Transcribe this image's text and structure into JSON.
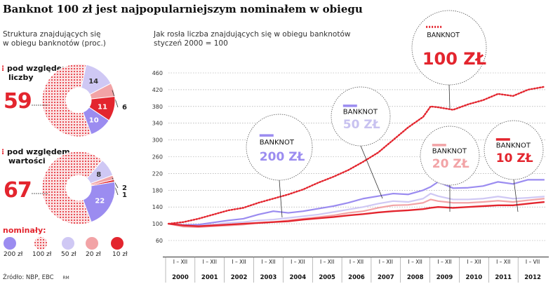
{
  "title": "Banknot 100 zł jest najpopularniejszym nominałem w obiegu",
  "left_subtitle": "Struktura znajdujących się\nw obiegu banknotów (proc.)",
  "right_subtitle": "Jak rosła liczba znajdujących się w obiegu banknotów\nstyczeń 2000 = 100",
  "source": "Źródło: NBP, EBC",
  "credit": "RM",
  "colors": {
    "n200": "#9b8cf0",
    "n100": "#e3252e",
    "n50": "#cfc8f4",
    "n20": "#f2a3a6",
    "n10": "#e3252e",
    "grid": "#999999"
  },
  "legend": {
    "title": "nominały:",
    "items": [
      {
        "label": "200 zł",
        "color": "#9b8cf0",
        "icon": "solid-dot"
      },
      {
        "label": "100 zł",
        "color": "#e3252e",
        "icon": "dotted-circle"
      },
      {
        "label": "50 zł",
        "color": "#cfc8f4",
        "icon": "solid-dot"
      },
      {
        "label": "20 zł",
        "color": "#f2a3a6",
        "icon": "solid-dot"
      },
      {
        "label": "10 zł",
        "color": "#e3252e",
        "icon": "solid-dot"
      }
    ]
  },
  "callouts": [
    {
      "word": "BANKNOT",
      "value": "100 ZŁ",
      "series": "100 zł"
    },
    {
      "word": "BANKNOT",
      "value": "50 ZŁ",
      "series": "50 zł"
    },
    {
      "word": "BANKNOT",
      "value": "200 ZŁ",
      "series": "200 zł"
    },
    {
      "word": "BANKNOT",
      "value": "20 ZŁ",
      "series": "20 zł"
    },
    {
      "word": "BANKNOT",
      "value": "10 ZŁ",
      "series": "10 zł"
    }
  ],
  "chart_data": [
    {
      "type": "pie",
      "subtype": "donut",
      "label": "pod względem\nliczby",
      "highlight": "59",
      "slices": [
        {
          "name": "100 zł",
          "value": 59,
          "label": ""
        },
        {
          "name": "50 zł",
          "value": 14,
          "label": "14"
        },
        {
          "name": "20 zł",
          "value": 6,
          "label": "6"
        },
        {
          "name": "10 zł",
          "value": 11,
          "label": "11"
        },
        {
          "name": "200 zł",
          "value": 10,
          "label": "10"
        }
      ]
    },
    {
      "type": "pie",
      "subtype": "donut",
      "label": "pod względem\nwartości",
      "highlight": "67",
      "slices": [
        {
          "name": "100 zł",
          "value": 67,
          "label": ""
        },
        {
          "name": "50 zł",
          "value": 8,
          "label": "8"
        },
        {
          "name": "20 zł",
          "value": 2,
          "label": "2"
        },
        {
          "name": "10 zł",
          "value": 1,
          "label": "1"
        },
        {
          "name": "200 zł",
          "value": 22,
          "label": "22"
        }
      ]
    },
    {
      "type": "line",
      "ylim": [
        60,
        460
      ],
      "yticks": [
        60,
        100,
        140,
        180,
        220,
        260,
        300,
        340,
        380,
        420,
        460
      ],
      "xlim": [
        2000,
        2012.6
      ],
      "x_period_labels": [
        "I – XII",
        "I – XII",
        "I – XII",
        "I – XII",
        "I – XII",
        "I – XII",
        "I – XII",
        "I – XII",
        "I – XII",
        "I – XII",
        "I – XII",
        "I – XII",
        "I – VII"
      ],
      "x_year_labels": [
        "2000",
        "2001",
        "2002",
        "2003",
        "2004",
        "2005",
        "2006",
        "2007",
        "2008",
        "2009",
        "2010",
        "2011",
        "2012"
      ],
      "x": [
        2000,
        2000.5,
        2001,
        2001.5,
        2002,
        2002.5,
        2003,
        2003.5,
        2004,
        2004.5,
        2005,
        2005.5,
        2006,
        2006.5,
        2007,
        2007.5,
        2008,
        2008.5,
        2008.75,
        2009,
        2009.5,
        2010,
        2010.5,
        2011,
        2011.5,
        2012,
        2012.55
      ],
      "series": [
        {
          "name": "100 zł",
          "style": "dotted",
          "values": [
            100,
            104,
            112,
            122,
            132,
            138,
            150,
            160,
            170,
            182,
            198,
            212,
            228,
            248,
            270,
            300,
            330,
            355,
            380,
            378,
            372,
            385,
            395,
            410,
            405,
            420,
            427
          ]
        },
        {
          "name": "200 zł",
          "style": "solid",
          "values": [
            100,
            97,
            98,
            103,
            108,
            112,
            122,
            130,
            126,
            130,
            136,
            142,
            150,
            160,
            166,
            172,
            170,
            180,
            188,
            200,
            185,
            186,
            190,
            200,
            195,
            205,
            205
          ]
        },
        {
          "name": "50 zł",
          "style": "solid",
          "values": [
            100,
            95,
            96,
            98,
            102,
            104,
            108,
            110,
            114,
            118,
            122,
            128,
            134,
            140,
            148,
            154,
            152,
            160,
            172,
            166,
            158,
            158,
            160,
            165,
            160,
            162,
            165
          ]
        },
        {
          "name": "20 zł",
          "style": "solid",
          "values": [
            100,
            93,
            92,
            94,
            96,
            98,
            102,
            104,
            108,
            112,
            116,
            120,
            126,
            130,
            138,
            144,
            145,
            150,
            158,
            154,
            150,
            150,
            152,
            155,
            152,
            156,
            160
          ]
        },
        {
          "name": "10 zł",
          "style": "solid",
          "values": [
            100,
            96,
            94,
            96,
            98,
            100,
            102,
            104,
            106,
            110,
            113,
            116,
            120,
            123,
            127,
            130,
            132,
            135,
            138,
            140,
            138,
            140,
            142,
            144,
            144,
            148,
            152
          ]
        }
      ]
    }
  ]
}
